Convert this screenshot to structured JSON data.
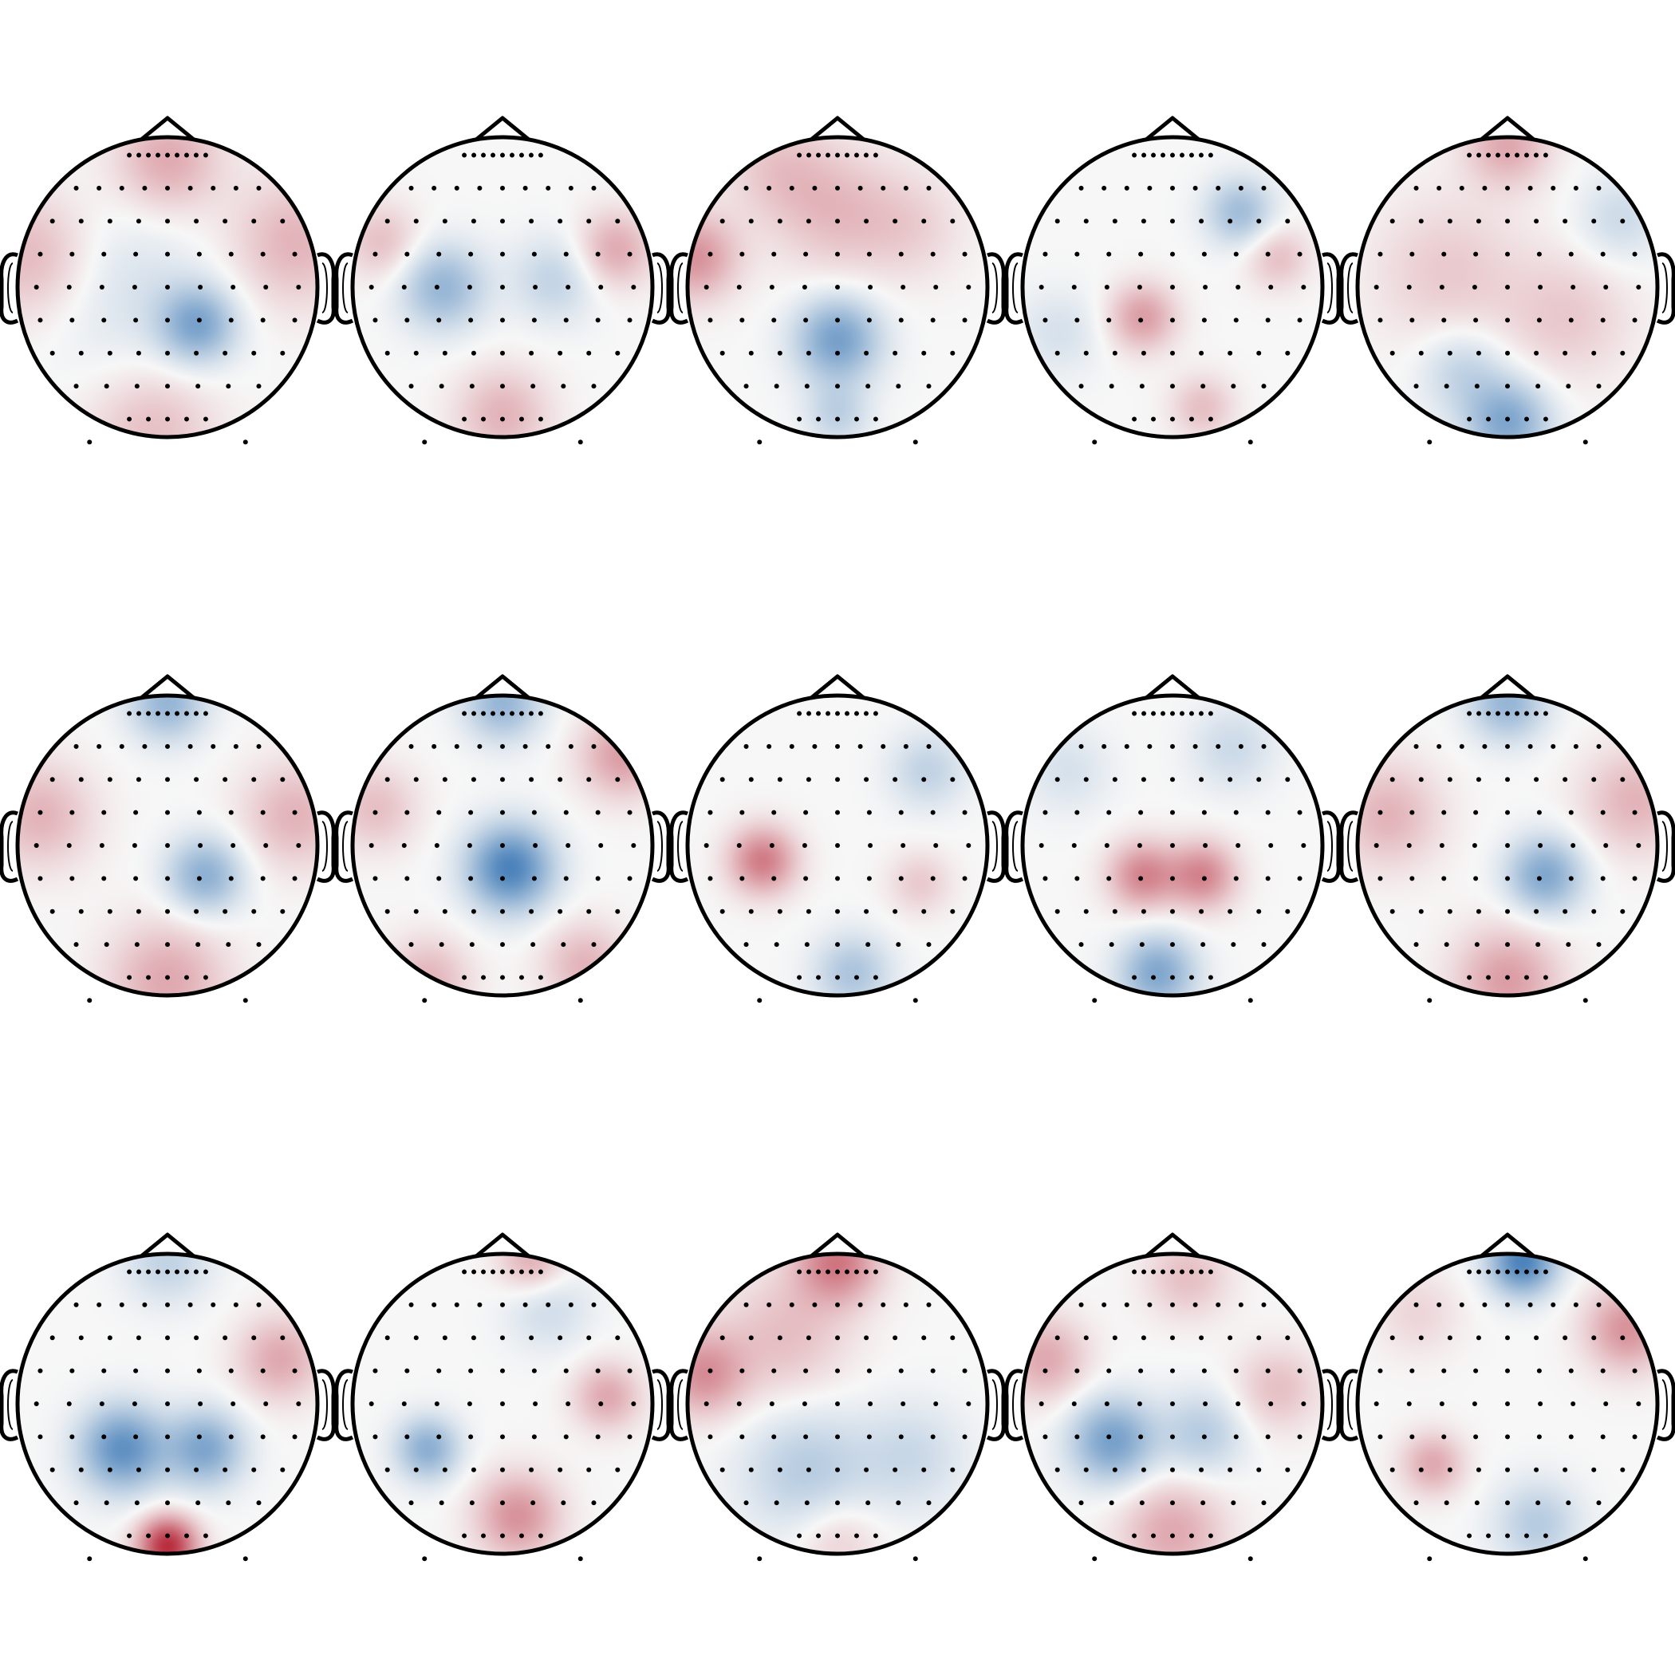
{
  "figure": {
    "type": "topomap-grid",
    "rows": 3,
    "columns": 5,
    "colormap": {
      "negative": "#2166ac",
      "neutral": "#f7f7f7",
      "positive": "#b2182b"
    },
    "outline_color": "#000000",
    "sensor_color": "#000000",
    "text": []
  },
  "sensor_montage_rows": [
    9,
    9,
    9,
    9,
    9,
    9,
    9,
    7,
    5
  ],
  "maps": [
    {
      "row": 1,
      "col": 1,
      "blobs": [
        {
          "u": 0.2,
          "v": 0.25,
          "a": -0.55,
          "s": 0.18
        },
        {
          "u": 0.0,
          "v": -0.85,
          "a": 0.35,
          "s": 0.25
        },
        {
          "u": -0.1,
          "v": 0.95,
          "a": 0.25,
          "s": 0.3
        },
        {
          "u": -0.9,
          "v": -0.2,
          "a": 0.3,
          "s": 0.3
        },
        {
          "u": 0.85,
          "v": -0.3,
          "a": 0.3,
          "s": 0.3
        },
        {
          "u": -0.3,
          "v": 0.0,
          "a": -0.15,
          "s": 0.4
        }
      ]
    },
    {
      "row": 1,
      "col": 2,
      "blobs": [
        {
          "u": -0.4,
          "v": 0.0,
          "a": -0.45,
          "s": 0.2
        },
        {
          "u": 0.35,
          "v": -0.05,
          "a": -0.25,
          "s": 0.2
        },
        {
          "u": 0.0,
          "v": 0.85,
          "a": 0.3,
          "s": 0.22
        },
        {
          "u": 0.75,
          "v": -0.25,
          "a": 0.35,
          "s": 0.18
        },
        {
          "u": -0.8,
          "v": -0.3,
          "a": 0.25,
          "s": 0.18
        }
      ]
    },
    {
      "row": 1,
      "col": 3,
      "blobs": [
        {
          "u": 0.0,
          "v": 0.35,
          "a": -0.6,
          "s": 0.2
        },
        {
          "u": 0.0,
          "v": 0.85,
          "a": -0.25,
          "s": 0.15
        },
        {
          "u": -0.95,
          "v": -0.2,
          "a": 0.45,
          "s": 0.2
        },
        {
          "u": 0.0,
          "v": -0.5,
          "a": 0.25,
          "s": 0.3
        },
        {
          "u": -0.4,
          "v": -0.8,
          "a": 0.2,
          "s": 0.25
        },
        {
          "u": 0.5,
          "v": -0.4,
          "a": 0.15,
          "s": 0.25
        }
      ]
    },
    {
      "row": 1,
      "col": 4,
      "blobs": [
        {
          "u": -0.2,
          "v": 0.2,
          "a": 0.4,
          "s": 0.16
        },
        {
          "u": 0.45,
          "v": -0.5,
          "a": -0.4,
          "s": 0.16
        },
        {
          "u": 0.7,
          "v": -0.2,
          "a": 0.25,
          "s": 0.15
        },
        {
          "u": 0.2,
          "v": 0.8,
          "a": 0.25,
          "s": 0.15
        },
        {
          "u": -0.75,
          "v": 0.3,
          "a": -0.15,
          "s": 0.2
        }
      ]
    },
    {
      "row": 1,
      "col": 5,
      "blobs": [
        {
          "u": 0.0,
          "v": -0.95,
          "a": 0.35,
          "s": 0.2
        },
        {
          "u": 0.0,
          "v": 0.9,
          "a": -0.55,
          "s": 0.2
        },
        {
          "u": -0.3,
          "v": 0.55,
          "a": -0.25,
          "s": 0.2
        },
        {
          "u": -0.4,
          "v": -0.1,
          "a": 0.2,
          "s": 0.35
        },
        {
          "u": 0.4,
          "v": 0.2,
          "a": 0.2,
          "s": 0.3
        },
        {
          "u": 0.75,
          "v": -0.45,
          "a": -0.2,
          "s": 0.2
        }
      ]
    },
    {
      "row": 2,
      "col": 1,
      "blobs": [
        {
          "u": 0.25,
          "v": 0.2,
          "a": -0.5,
          "s": 0.18
        },
        {
          "u": 0.0,
          "v": -0.95,
          "a": -0.45,
          "s": 0.18
        },
        {
          "u": 0.0,
          "v": 0.9,
          "a": 0.35,
          "s": 0.28
        },
        {
          "u": -0.85,
          "v": -0.2,
          "a": 0.3,
          "s": 0.25
        },
        {
          "u": 0.85,
          "v": -0.2,
          "a": 0.3,
          "s": 0.25
        }
      ]
    },
    {
      "row": 2,
      "col": 2,
      "blobs": [
        {
          "u": 0.05,
          "v": 0.15,
          "a": -0.8,
          "s": 0.2
        },
        {
          "u": 0.0,
          "v": -0.95,
          "a": -0.45,
          "s": 0.18
        },
        {
          "u": 0.8,
          "v": -0.6,
          "a": 0.4,
          "s": 0.2
        },
        {
          "u": -0.5,
          "v": 0.9,
          "a": 0.3,
          "s": 0.2
        },
        {
          "u": 0.55,
          "v": 0.8,
          "a": 0.3,
          "s": 0.2
        },
        {
          "u": -0.85,
          "v": -0.25,
          "a": 0.25,
          "s": 0.2
        }
      ]
    },
    {
      "row": 2,
      "col": 3,
      "blobs": [
        {
          "u": -0.5,
          "v": 0.1,
          "a": 0.55,
          "s": 0.16
        },
        {
          "u": 0.1,
          "v": 0.85,
          "a": -0.35,
          "s": 0.18
        },
        {
          "u": 0.6,
          "v": -0.5,
          "a": -0.25,
          "s": 0.18
        },
        {
          "u": 0.55,
          "v": 0.25,
          "a": 0.2,
          "s": 0.15
        }
      ]
    },
    {
      "row": 2,
      "col": 4,
      "blobs": [
        {
          "u": -0.2,
          "v": 0.2,
          "a": 0.5,
          "s": 0.16
        },
        {
          "u": 0.2,
          "v": 0.2,
          "a": 0.5,
          "s": 0.16
        },
        {
          "u": -0.1,
          "v": 0.85,
          "a": -0.55,
          "s": 0.18
        },
        {
          "u": 0.4,
          "v": -0.65,
          "a": -0.2,
          "s": 0.2
        },
        {
          "u": -0.7,
          "v": -0.5,
          "a": -0.15,
          "s": 0.2
        }
      ]
    },
    {
      "row": 2,
      "col": 5,
      "blobs": [
        {
          "u": 0.25,
          "v": 0.2,
          "a": -0.55,
          "s": 0.18
        },
        {
          "u": 0.0,
          "v": -0.95,
          "a": -0.45,
          "s": 0.18
        },
        {
          "u": 0.0,
          "v": 0.9,
          "a": 0.4,
          "s": 0.25
        },
        {
          "u": -0.8,
          "v": -0.2,
          "a": 0.3,
          "s": 0.25
        },
        {
          "u": 0.85,
          "v": -0.3,
          "a": 0.3,
          "s": 0.25
        }
      ]
    },
    {
      "row": 3,
      "col": 1,
      "blobs": [
        {
          "u": -0.3,
          "v": 0.3,
          "a": -0.7,
          "s": 0.2
        },
        {
          "u": 0.25,
          "v": 0.3,
          "a": -0.55,
          "s": 0.18
        },
        {
          "u": 0.0,
          "v": 0.95,
          "a": 0.9,
          "s": 0.14
        },
        {
          "u": 0.75,
          "v": -0.3,
          "a": 0.35,
          "s": 0.2
        },
        {
          "u": 0.0,
          "v": -0.95,
          "a": -0.25,
          "s": 0.2
        }
      ]
    },
    {
      "row": 3,
      "col": 2,
      "blobs": [
        {
          "u": -0.5,
          "v": 0.3,
          "a": -0.5,
          "s": 0.15
        },
        {
          "u": 0.1,
          "v": 0.75,
          "a": 0.45,
          "s": 0.2
        },
        {
          "u": 0.7,
          "v": -0.05,
          "a": 0.35,
          "s": 0.16
        },
        {
          "u": 0.2,
          "v": -0.95,
          "a": 0.35,
          "s": 0.16
        },
        {
          "u": 0.3,
          "v": -0.65,
          "a": -0.2,
          "s": 0.2
        }
      ]
    },
    {
      "row": 3,
      "col": 3,
      "blobs": [
        {
          "u": 0.0,
          "v": -0.95,
          "a": 0.55,
          "s": 0.2
        },
        {
          "u": -0.9,
          "v": -0.2,
          "a": 0.45,
          "s": 0.2
        },
        {
          "u": -0.35,
          "v": -0.45,
          "a": 0.25,
          "s": 0.3
        },
        {
          "u": -0.2,
          "v": 0.45,
          "a": -0.3,
          "s": 0.3
        },
        {
          "u": 0.5,
          "v": 0.35,
          "a": -0.2,
          "s": 0.25
        },
        {
          "u": 0.0,
          "v": 0.9,
          "a": 0.2,
          "s": 0.2
        }
      ]
    },
    {
      "row": 3,
      "col": 4,
      "blobs": [
        {
          "u": -0.4,
          "v": 0.25,
          "a": -0.6,
          "s": 0.2
        },
        {
          "u": 0.2,
          "v": 0.2,
          "a": -0.3,
          "s": 0.2
        },
        {
          "u": -0.85,
          "v": -0.3,
          "a": 0.35,
          "s": 0.2
        },
        {
          "u": 0.0,
          "v": 0.85,
          "a": 0.35,
          "s": 0.25
        },
        {
          "u": 0.7,
          "v": -0.1,
          "a": 0.25,
          "s": 0.2
        },
        {
          "u": 0.1,
          "v": -0.85,
          "a": 0.25,
          "s": 0.2
        }
      ]
    },
    {
      "row": 3,
      "col": 5,
      "blobs": [
        {
          "u": 0.1,
          "v": -0.95,
          "a": -0.8,
          "s": 0.16
        },
        {
          "u": 0.8,
          "v": -0.5,
          "a": 0.45,
          "s": 0.2
        },
        {
          "u": -0.5,
          "v": 0.4,
          "a": 0.35,
          "s": 0.15
        },
        {
          "u": 0.2,
          "v": 0.8,
          "a": -0.3,
          "s": 0.2
        },
        {
          "u": -0.6,
          "v": -0.6,
          "a": 0.15,
          "s": 0.2
        }
      ]
    }
  ]
}
